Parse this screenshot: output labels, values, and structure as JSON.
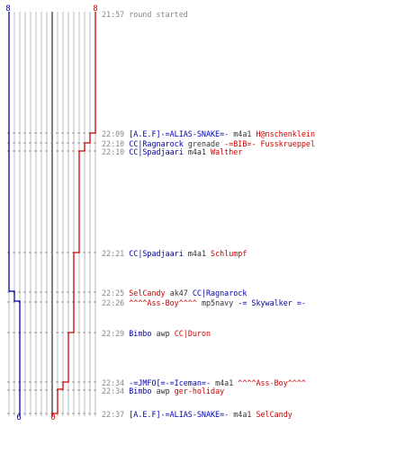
{
  "header": {
    "left_score": "8",
    "right_score": "8"
  },
  "footer": {
    "left_score": "6",
    "right_score": "0"
  },
  "colors": {
    "blue_team": "#0000aa",
    "red_team": "#cc0000",
    "time": "#888888",
    "neutral": "#333333",
    "gridline": "#bbbbbb",
    "centerline": "#555555"
  },
  "log": [
    {
      "time": "21:57",
      "segments": [
        {
          "text": "round started",
          "color": "time"
        }
      ]
    },
    {
      "time": "22:09",
      "segments": [
        {
          "text": "[A.E.F]-=ALIAS-SNAKE=-",
          "color": "blue_team"
        },
        {
          "text": "m4a1",
          "color": "neutral"
        },
        {
          "text": "H@nschenklein",
          "color": "red_team"
        }
      ]
    },
    {
      "time": "22:10",
      "segments": [
        {
          "text": "CC|Ragnarock",
          "color": "blue_team"
        },
        {
          "text": "grenade",
          "color": "neutral"
        },
        {
          "text": "-=BIB=- Fusskrueppel",
          "color": "red_team"
        }
      ]
    },
    {
      "time": "22:10",
      "segments": [
        {
          "text": "CC|Spadjaari",
          "color": "blue_team"
        },
        {
          "text": "m4a1",
          "color": "neutral"
        },
        {
          "text": "Walther",
          "color": "red_team"
        }
      ]
    },
    {
      "time": "22:21",
      "segments": [
        {
          "text": "CC|Spadjaari",
          "color": "blue_team"
        },
        {
          "text": "m4a1",
          "color": "neutral"
        },
        {
          "text": "Schlumpf",
          "color": "red_team"
        }
      ]
    },
    {
      "time": "22:25",
      "segments": [
        {
          "text": "SelCandy",
          "color": "red_team"
        },
        {
          "text": "ak47",
          "color": "neutral"
        },
        {
          "text": "CC|Ragnarock",
          "color": "blue_team"
        }
      ]
    },
    {
      "time": "22:26",
      "segments": [
        {
          "text": "^^^^Ass-Boy^^^^",
          "color": "red_team"
        },
        {
          "text": "mp5navy",
          "color": "neutral"
        },
        {
          "text": "-= Skywalker =-",
          "color": "blue_team"
        }
      ]
    },
    {
      "time": "22:29",
      "segments": [
        {
          "text": "Bimbo",
          "color": "blue_team"
        },
        {
          "text": "awp",
          "color": "neutral"
        },
        {
          "text": "CC|Duron",
          "color": "red_team"
        }
      ]
    },
    {
      "time": "22:34",
      "segments": [
        {
          "text": "-=JMFO[=-=Iceman=-",
          "color": "blue_team"
        },
        {
          "text": "m4a1",
          "color": "neutral"
        },
        {
          "text": "^^^^Ass-Boy^^^^",
          "color": "red_team"
        }
      ]
    },
    {
      "time": "22:34",
      "segments": [
        {
          "text": "Bimbo",
          "color": "blue_team"
        },
        {
          "text": "awp",
          "color": "neutral"
        },
        {
          "text": "ger-holiday",
          "color": "red_team"
        }
      ]
    },
    {
      "time": "22:37",
      "segments": [
        {
          "text": "[A.E.F]-=ALIAS-SNAKE=-",
          "color": "blue_team"
        },
        {
          "text": "m4a1",
          "color": "neutral"
        },
        {
          "text": "SelCandy",
          "color": "red_team"
        }
      ]
    }
  ],
  "chart_data": {
    "type": "line",
    "xlim": [
      0,
      8
    ],
    "series": [
      {
        "x": [
          8,
          8,
          7,
          7,
          6,
          6
        ],
        "y": [
          "21:57",
          "22:25",
          "22:25",
          "22:26",
          "22:26",
          "22:37"
        ],
        "color": "blue_team"
      },
      {
        "x": [
          8,
          8,
          7,
          6,
          5,
          5,
          4,
          4,
          3,
          3,
          2,
          1,
          1,
          0,
          0
        ],
        "y": [
          "21:57",
          "22:09",
          "22:09",
          "22:10",
          "22:10",
          "22:21",
          "22:21",
          "22:29",
          "22:29",
          "22:34",
          "22:34",
          "22:34",
          "22:37",
          "22:37",
          "22:37"
        ],
        "color": "red_team"
      }
    ]
  }
}
